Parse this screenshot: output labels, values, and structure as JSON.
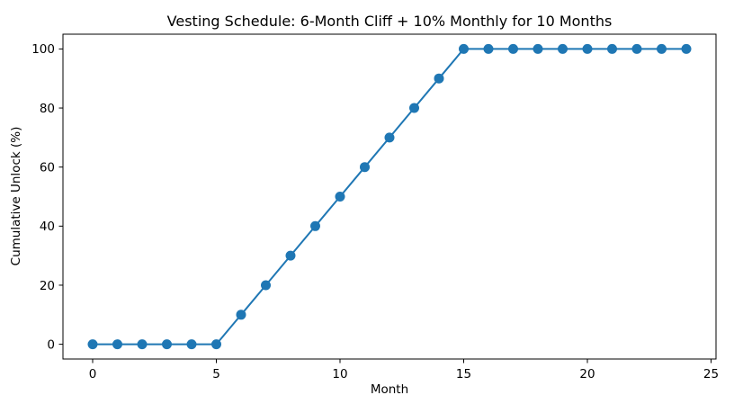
{
  "figure": {
    "background": "#ffffff",
    "frame_color": "#000000"
  },
  "chart_data": {
    "type": "line",
    "title": "Vesting Schedule: 6-Month Cliff + 10% Monthly for 10 Months",
    "xlabel": "Month",
    "ylabel": "Cumulative Unlock (%)",
    "x": [
      0,
      1,
      2,
      3,
      4,
      5,
      6,
      7,
      8,
      9,
      10,
      11,
      12,
      13,
      14,
      15,
      16,
      17,
      18,
      19,
      20,
      21,
      22,
      23,
      24
    ],
    "y": [
      0,
      0,
      0,
      0,
      0,
      0,
      10,
      20,
      30,
      40,
      50,
      60,
      70,
      80,
      90,
      100,
      100,
      100,
      100,
      100,
      100,
      100,
      100,
      100,
      100
    ],
    "xticks": [
      0,
      5,
      10,
      15,
      20,
      25
    ],
    "yticks": [
      0,
      20,
      40,
      60,
      80,
      100
    ],
    "xlim": [
      -1.2,
      25.2
    ],
    "ylim": [
      -5,
      105
    ],
    "grid": false,
    "legend": null,
    "series": [
      {
        "name": "cumulative-unlock",
        "color": "#1f77b4",
        "marker": "circle",
        "marker_size": 5.5,
        "line_width": 2
      }
    ]
  }
}
